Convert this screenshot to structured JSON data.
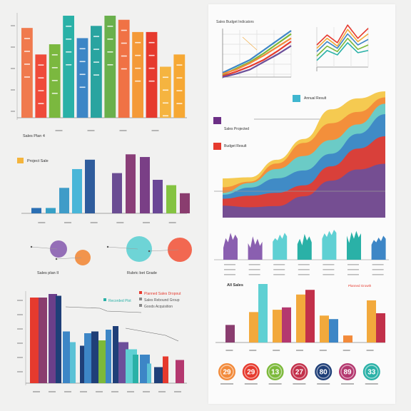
{
  "palette": {
    "red": "#e63a2e",
    "orange": "#f28a3a",
    "amber": "#f2a93c",
    "yellow": "#f4c542",
    "green": "#7cb93a",
    "teal": "#2ab1a7",
    "cyan": "#5fd0d3",
    "blue": "#3d86c6",
    "navy": "#1f3f78",
    "purple": "#6c4f9a",
    "violet": "#8a5fb0",
    "magenta": "#b4386f"
  },
  "chart_data": [
    {
      "type": "bar",
      "values": [
        88,
        62,
        72,
        100,
        78,
        90,
        100,
        96,
        84,
        84,
        50,
        62
      ],
      "colors": [
        "#f07a4e",
        "#ef4b3a",
        "#7bb83f",
        "#2ab1a7",
        "#3d86c6",
        "#29a4a0",
        "#6ab04c",
        "#f07245",
        "#f49a38",
        "#e63a2e",
        "#f5b440",
        "#f6a834"
      ]
    },
    {
      "type": "bar",
      "title": "Sales Plan 4",
      "legend": "Project Sale",
      "values": [
        8,
        8,
        38,
        66,
        80,
        60,
        88,
        84,
        50,
        42,
        30
      ],
      "colors": [
        "#2b6fb3",
        "#37a0c6",
        "#3f9cc8",
        "#49b6d8",
        "#2f5c9c",
        "#6b4d93",
        "#8a3f78",
        "#7a3f86",
        "#6a4796",
        "#84c341",
        "#8a3d6f"
      ]
    },
    {
      "type": "scatter",
      "caption_left": "Sales plan II",
      "caption_right": "Rubric bet Grade",
      "points": [
        {
          "x": 1,
          "y": 2,
          "r": 12,
          "color": "#8a5fb0"
        },
        {
          "x": 2,
          "y": 1,
          "r": 11,
          "color": "#f28a3a"
        },
        {
          "x": 3,
          "y": 2,
          "r": 18,
          "color": "#5fd0d3"
        },
        {
          "x": 4,
          "y": 2,
          "r": 17,
          "color": "#f2593f"
        }
      ]
    },
    {
      "type": "bar",
      "legend_top": "Recorded Plot",
      "legend_items": [
        "Planned Sales Dropout",
        "Sales Rebound Group",
        "Goods Acquisition"
      ],
      "values": [
        96,
        96,
        100,
        98,
        58,
        46,
        42,
        56,
        58,
        48,
        60,
        64,
        46,
        38,
        32,
        32,
        22,
        18,
        30,
        26
      ],
      "colors": [
        "#e63a2e",
        "#8a3d6f",
        "#6b3f8a",
        "#1f3f78",
        "#3d86c6",
        "#5bc2d6",
        "#1f3f78",
        "#3d86c6",
        "#1f3f78",
        "#7cb93a",
        "#3d86c6",
        "#1f3f78",
        "#6c4f9a",
        "#5fd0d3",
        "#2ab1a7",
        "#3d86c6",
        "#5bc2d6",
        "#1f3f78",
        "#e63a2e",
        "#b4386f"
      ]
    },
    {
      "type": "line",
      "title": "Sales Budget Indicators",
      "series": [
        {
          "color": "#3d86c6",
          "values": [
            8,
            20,
            32,
            50,
            68,
            86
          ]
        },
        {
          "color": "#7cb93a",
          "values": [
            4,
            16,
            28,
            44,
            62,
            80
          ]
        },
        {
          "color": "#f28a3a",
          "values": [
            6,
            14,
            26,
            40,
            56,
            72
          ]
        },
        {
          "color": "#e63a2e",
          "values": [
            2,
            10,
            20,
            32,
            48,
            66
          ]
        },
        {
          "color": "#6c4f9a",
          "values": [
            0,
            6,
            14,
            28,
            42,
            58
          ]
        }
      ]
    },
    {
      "type": "line",
      "series": [
        {
          "color": "#e63a2e",
          "values": [
            40,
            58,
            44,
            76,
            52,
            70
          ]
        },
        {
          "color": "#f2a93c",
          "values": [
            34,
            52,
            38,
            68,
            46,
            60
          ]
        },
        {
          "color": "#3d86c6",
          "values": [
            28,
            46,
            34,
            60,
            40,
            50
          ]
        },
        {
          "color": "#7cb93a",
          "values": [
            20,
            38,
            28,
            52,
            32,
            40
          ]
        },
        {
          "color": "#2ab1a7",
          "values": [
            12,
            30,
            22,
            44,
            26,
            30
          ]
        }
      ]
    },
    {
      "type": "area",
      "legend": [
        "Annual Result",
        "Sales Projected",
        "Budget Result"
      ],
      "series": [
        {
          "color": "#f4c542",
          "values": [
            30,
            34,
            46,
            58,
            80,
            92,
            100
          ]
        },
        {
          "color": "#f28a3a",
          "values": [
            26,
            30,
            40,
            54,
            72,
            84,
            94
          ]
        },
        {
          "color": "#5fd0d3",
          "values": [
            22,
            26,
            34,
            46,
            62,
            74,
            86
          ]
        },
        {
          "color": "#3d86c6",
          "values": [
            18,
            20,
            28,
            38,
            52,
            64,
            76
          ]
        },
        {
          "color": "#e63a2e",
          "values": [
            12,
            14,
            20,
            28,
            40,
            50,
            60
          ]
        },
        {
          "color": "#6c4f9a",
          "values": [
            6,
            8,
            12,
            18,
            26,
            34,
            42
          ]
        }
      ]
    },
    {
      "type": "area",
      "values_per_panel": 7,
      "panels": [
        {
          "color": "#8a5fb0",
          "values": [
            40,
            72,
            58,
            90,
            66,
            84,
            70
          ]
        },
        {
          "color": "#8a5fb0",
          "values": [
            55,
            40,
            78,
            50,
            70,
            46,
            60
          ]
        },
        {
          "color": "#5fd0d3",
          "values": [
            60,
            72,
            64,
            84,
            70,
            90,
            78
          ]
        },
        {
          "color": "#2ab1a7",
          "values": [
            52,
            70,
            48,
            86,
            64,
            78,
            58
          ]
        },
        {
          "color": "#5fd0d3",
          "values": [
            70,
            88,
            76,
            96,
            82,
            100,
            90
          ]
        },
        {
          "color": "#2ab1a7",
          "values": [
            80,
            56,
            92,
            70,
            96,
            74,
            88
          ]
        },
        {
          "color": "#3d86c6",
          "values": [
            50,
            66,
            58,
            74,
            62,
            80,
            70
          ]
        }
      ]
    },
    {
      "type": "bar",
      "title": "All Sales",
      "subtitle": "Planned Growth",
      "groups": [
        [
          {
            "v": 30,
            "c": "#8a3d6f"
          },
          {
            "v": 0,
            "c": "#f2a93c"
          }
        ],
        [
          {
            "v": 52,
            "c": "#f2a93c"
          },
          {
            "v": 100,
            "c": "#5fd0d3"
          }
        ],
        [
          {
            "v": 56,
            "c": "#f2a93c"
          },
          {
            "v": 60,
            "c": "#b4386f"
          }
        ],
        [
          {
            "v": 82,
            "c": "#f2a93c"
          },
          {
            "v": 90,
            "c": "#c2304a"
          }
        ],
        [
          {
            "v": 46,
            "c": "#f2a93c"
          },
          {
            "v": 40,
            "c": "#3d86c6"
          }
        ],
        [
          {
            "v": 12,
            "c": "#f28a3a"
          },
          {
            "v": 0,
            "c": "#2ab1a7"
          }
        ],
        [
          {
            "v": 72,
            "c": "#f2a93c"
          },
          {
            "v": 50,
            "c": "#c2304a"
          }
        ]
      ]
    },
    {
      "type": "pie",
      "values": [
        29,
        29,
        13,
        27,
        80,
        89,
        33
      ],
      "colors": [
        "#f28a3a",
        "#e63a2e",
        "#7cb93a",
        "#c2304a",
        "#1f3f78",
        "#b4386f",
        "#2ab1a7"
      ]
    }
  ]
}
